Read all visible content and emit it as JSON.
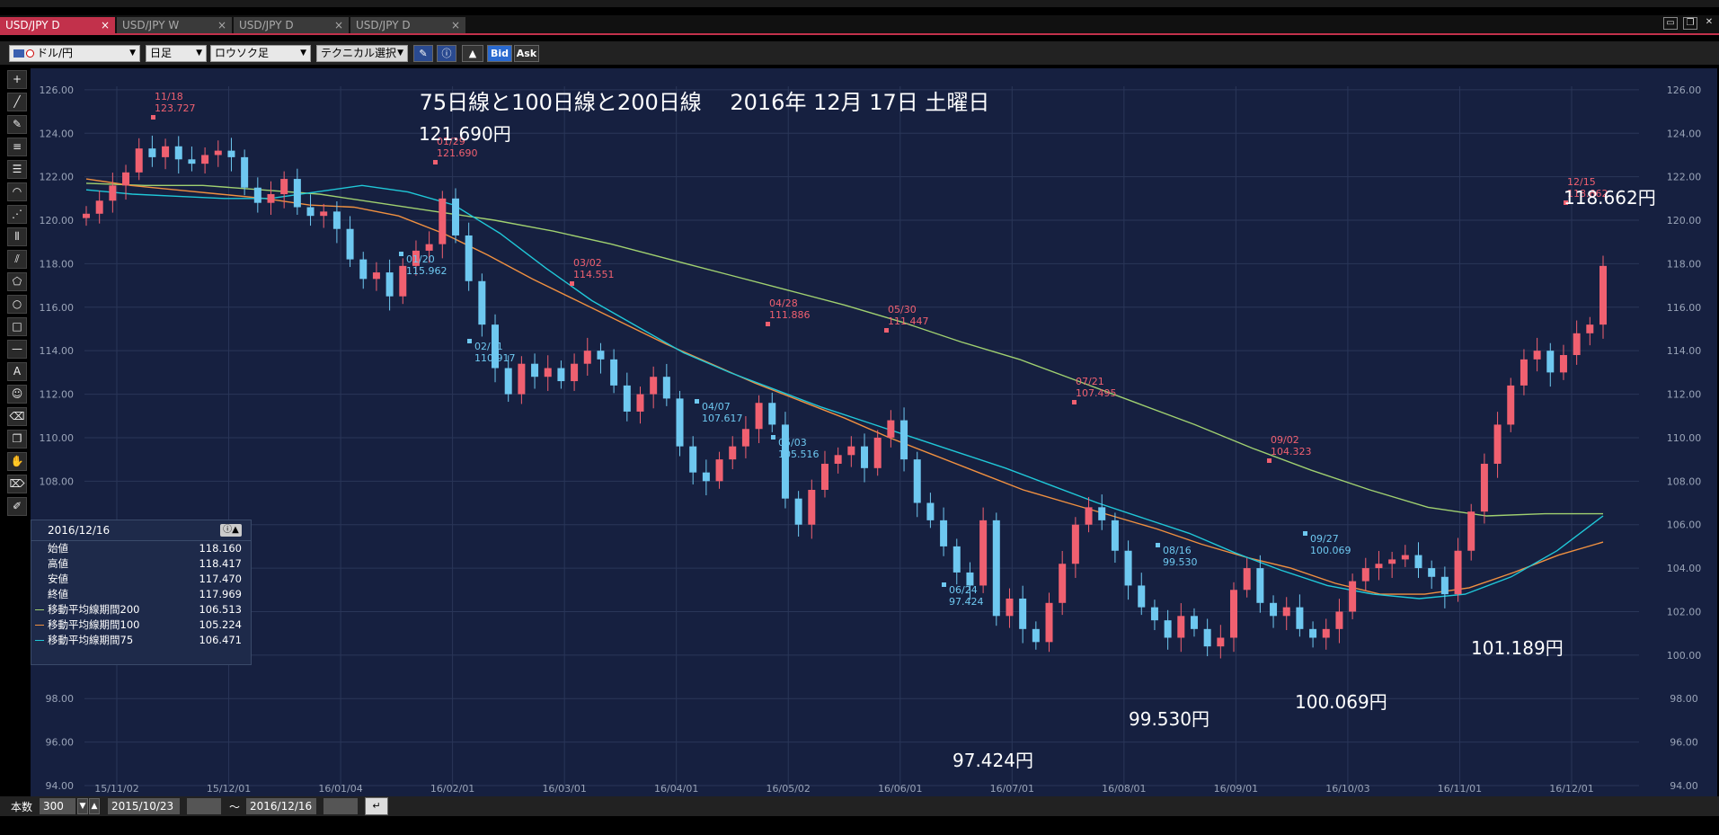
{
  "tabs": [
    {
      "label": "USD/JPY D",
      "active": true
    },
    {
      "label": "USD/JPY W",
      "active": false
    },
    {
      "label": "USD/JPY D",
      "active": false
    },
    {
      "label": "USD/JPY D",
      "active": false
    }
  ],
  "tab_close": "×",
  "toolbar": {
    "pair": "ドル/円",
    "period": "日足",
    "chart_style": "ロウソク足",
    "technical": "テクニカル選択",
    "bid": "Bid",
    "ask": "Ask"
  },
  "left_tools": [
    "crosshair-icon",
    "line-icon",
    "pencil-icon",
    "hlines-icon",
    "hlines2-icon",
    "arc-icon",
    "fan-icon",
    "vlines-icon",
    "channel-icon",
    "pentagon-icon",
    "circle-icon",
    "rect-icon",
    "separator-icon",
    "text-icon",
    "smiley-icon",
    "trash-icon",
    "copy-icon",
    "hand-icon",
    "eraser-icon",
    "brush-icon"
  ],
  "left_tool_text": {
    "text-icon": "A"
  },
  "chart_data": {
    "type": "candlestick",
    "title": "75日線と100日線と200日線　 2016年 12月 17日 土曜日",
    "ylim": [
      94,
      127
    ],
    "y_ticks": [
      "126.00",
      "124.00",
      "122.00",
      "120.00",
      "118.00",
      "116.00",
      "114.00",
      "112.00",
      "110.00",
      "108.00",
      "106.00",
      "104.00",
      "102.00",
      "100.00",
      "98.00",
      "96.00",
      "94.00"
    ],
    "x_ticks": [
      "15/11/02",
      "15/12/01",
      "16/01/04",
      "16/02/01",
      "16/03/01",
      "16/04/01",
      "16/05/02",
      "16/06/01",
      "16/07/01",
      "16/08/01",
      "16/09/01",
      "16/10/03",
      "16/11/01",
      "16/12/01"
    ],
    "colors": {
      "up": "#f06070",
      "down": "#6ec8f0",
      "ma75": "#20c8d8",
      "ma100": "#f09040",
      "ma200": "#a0d070",
      "bg": "#162040",
      "grid": "#2a3658",
      "axis_text": "#9aa4b8",
      "high_label": "#f06070",
      "low_label": "#6ec8f0"
    },
    "closes": [
      120.3,
      120.9,
      121.6,
      122.2,
      123.3,
      122.9,
      123.4,
      122.8,
      122.6,
      123.0,
      123.2,
      122.9,
      121.5,
      120.8,
      121.2,
      121.9,
      120.6,
      120.2,
      120.4,
      119.6,
      118.2,
      117.3,
      117.6,
      116.5,
      117.9,
      118.6,
      118.9,
      121.0,
      119.3,
      117.2,
      115.2,
      113.2,
      112.0,
      113.4,
      112.8,
      113.2,
      112.6,
      113.4,
      114.0,
      113.6,
      112.4,
      111.2,
      112.0,
      112.8,
      111.8,
      109.6,
      108.4,
      108.0,
      109.0,
      109.6,
      110.4,
      111.6,
      110.6,
      107.2,
      106.0,
      107.6,
      108.8,
      109.2,
      109.6,
      108.6,
      110.0,
      110.8,
      109.0,
      107.0,
      106.2,
      105.0,
      103.8,
      103.2,
      106.2,
      101.8,
      102.6,
      101.2,
      100.6,
      102.4,
      104.2,
      106.0,
      106.8,
      106.2,
      104.8,
      103.2,
      102.2,
      101.6,
      100.8,
      101.8,
      101.2,
      100.4,
      100.8,
      103.0,
      104.0,
      102.4,
      101.8,
      102.2,
      101.2,
      100.8,
      101.2,
      102.0,
      103.4,
      104.0,
      104.2,
      104.4,
      104.6,
      104.0,
      103.6,
      102.8,
      104.8,
      106.6,
      108.8,
      110.6,
      112.4,
      113.6,
      114.0,
      113.0,
      113.8,
      114.8,
      115.2,
      117.9
    ],
    "ma75": [
      121.4,
      121.2,
      121.1,
      121.0,
      121.0,
      121.3,
      121.6,
      121.3,
      120.7,
      119.4,
      117.8,
      116.3,
      115.1,
      113.9,
      113.0,
      112.2,
      111.4,
      110.7,
      110.0,
      109.3,
      108.6,
      107.8,
      107.0,
      106.3,
      105.6,
      104.7,
      103.9,
      103.2,
      102.8,
      102.6,
      102.8,
      103.6,
      104.8,
      106.4
    ],
    "ma100": [
      121.9,
      121.6,
      121.4,
      121.2,
      121.0,
      120.7,
      120.6,
      120.2,
      119.4,
      118.4,
      117.3,
      116.3,
      115.3,
      114.3,
      113.4,
      112.5,
      111.7,
      110.9,
      110.0,
      109.2,
      108.4,
      107.6,
      107.0,
      106.4,
      105.8,
      105.1,
      104.5,
      104.0,
      103.3,
      102.8,
      102.8,
      103.1,
      103.8,
      104.6,
      105.2
    ],
    "ma200": [
      121.7,
      121.6,
      121.6,
      121.4,
      121.2,
      120.8,
      120.4,
      120.0,
      119.5,
      118.9,
      118.2,
      117.5,
      116.8,
      116.1,
      115.3,
      114.4,
      113.6,
      112.6,
      111.6,
      110.6,
      109.5,
      108.5,
      107.6,
      106.8,
      106.4,
      106.5,
      106.5
    ],
    "annotations": [
      {
        "date": "11/18",
        "value": "123.727",
        "kind": "high"
      },
      {
        "date": "01/29",
        "value": "121.690",
        "kind": "high"
      },
      {
        "date": "01/20",
        "value": "115.962",
        "kind": "low"
      },
      {
        "date": "02/11",
        "value": "110.917",
        "kind": "low"
      },
      {
        "date": "03/02",
        "value": "114.551",
        "kind": "high"
      },
      {
        "date": "04/07",
        "value": "107.617",
        "kind": "low"
      },
      {
        "date": "04/28",
        "value": "111.886",
        "kind": "high"
      },
      {
        "date": "05/03",
        "value": "105.516",
        "kind": "low"
      },
      {
        "date": "05/30",
        "value": "111.447",
        "kind": "high"
      },
      {
        "date": "06/24",
        "value": "97.424",
        "kind": "low"
      },
      {
        "date": "07/21",
        "value": "107.495",
        "kind": "high"
      },
      {
        "date": "08/16",
        "value": "99.530",
        "kind": "low"
      },
      {
        "date": "09/02",
        "value": "104.323",
        "kind": "high"
      },
      {
        "date": "09/27",
        "value": "100.069",
        "kind": "low"
      },
      {
        "date": "12/15",
        "value": "118.662",
        "kind": "high"
      }
    ],
    "big_labels": [
      "121.690円",
      "97.424円",
      "99.530円",
      "100.069円",
      "101.189円",
      "118.662円"
    ]
  },
  "info_panel": {
    "date": "2016/12/16",
    "rows": [
      {
        "label": "始値",
        "value": "118.160"
      },
      {
        "label": "高値",
        "value": "118.417"
      },
      {
        "label": "安値",
        "value": "117.470"
      },
      {
        "label": "終値",
        "value": "117.969"
      }
    ],
    "ma_rows": [
      {
        "label": "移動平均線期間200",
        "value": "106.513",
        "color": "#a0d070"
      },
      {
        "label": "移動平均線期間100",
        "value": "105.224",
        "color": "#f09040"
      },
      {
        "label": "移動平均線期間75",
        "value": "106.471",
        "color": "#20c8d8"
      }
    ]
  },
  "bottom": {
    "count_label": "本数",
    "count_value": "300",
    "from_date": "2015/10/23",
    "tilde": "〜",
    "to_date": "2016/12/16"
  }
}
